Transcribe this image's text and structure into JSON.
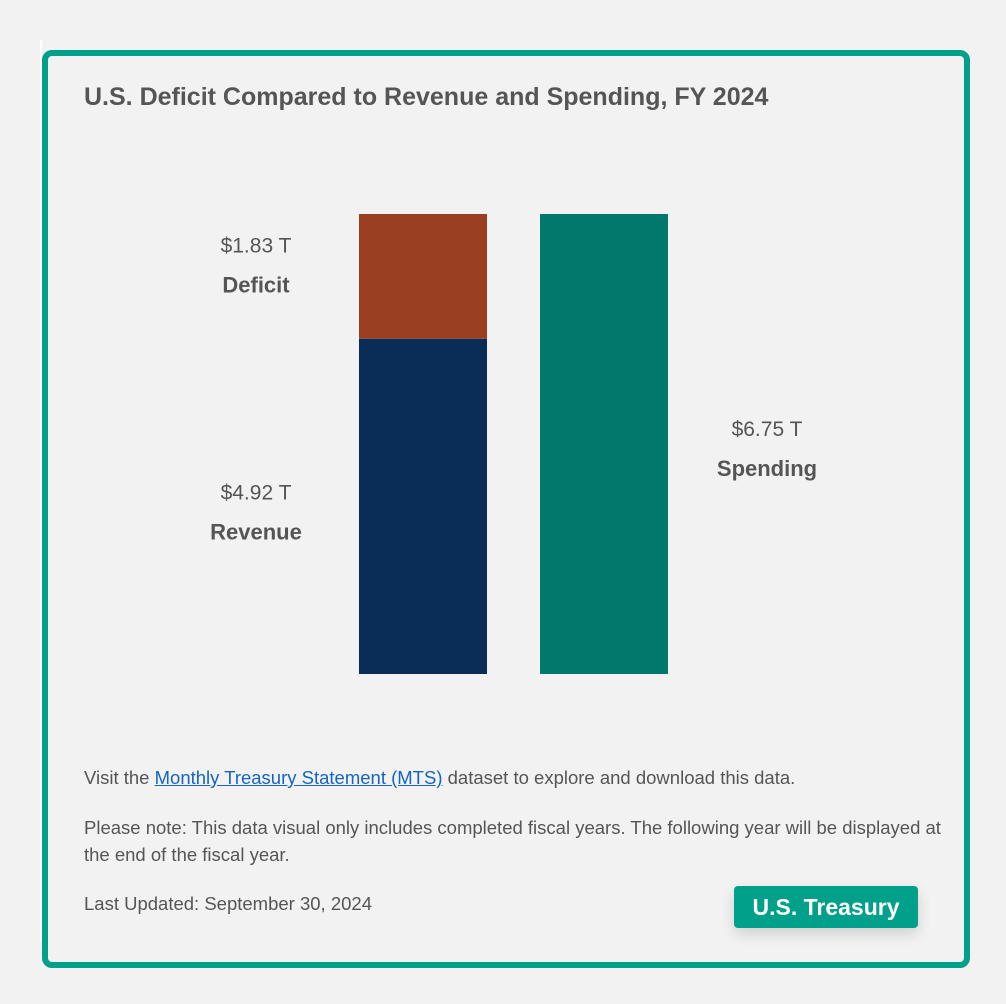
{
  "chart_data": {
    "type": "bar",
    "title": "U.S. Deficit Compared to Revenue and Spending, FY 2024",
    "unit": "T",
    "stacked_bar": [
      {
        "name": "Revenue",
        "value": 4.92,
        "display": "$4.92 T",
        "color": "#0a2d58"
      },
      {
        "name": "Deficit",
        "value": 1.83,
        "display": "$1.83 T",
        "color": "#9b3f22"
      }
    ],
    "single_bar": {
      "name": "Spending",
      "value": 6.75,
      "display": "$6.75 T",
      "color": "#00796b"
    }
  },
  "footer": {
    "visit_prefix": "Visit the ",
    "link_text": "Monthly Treasury Statement (MTS)",
    "visit_suffix": " dataset to explore and download this data.",
    "note": "Please note: This data visual only includes completed fiscal years. The following year will be displayed at the end of the fiscal year.",
    "last_updated": "Last Updated: September 30, 2024",
    "badge": "U.S. Treasury"
  },
  "colors": {
    "border": "#00a08a",
    "text": "#555555",
    "link": "#1565c0"
  }
}
